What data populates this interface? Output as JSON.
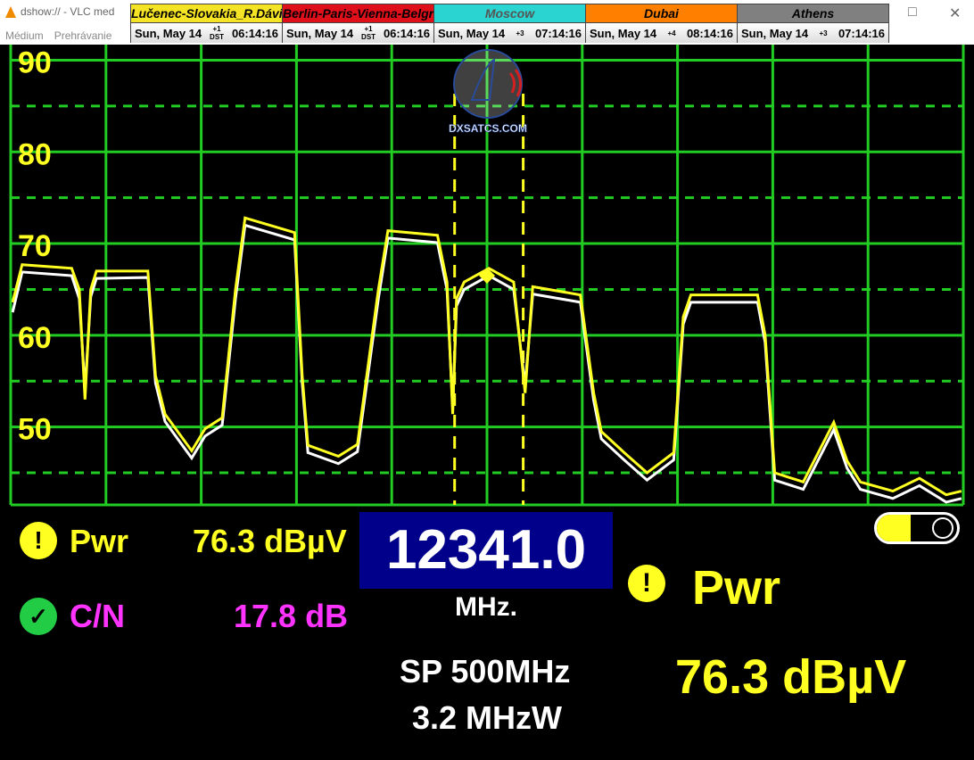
{
  "window": {
    "title": "dshow:// - VLC med",
    "menu": [
      "Médium",
      "Prehrávanie"
    ],
    "maximize_icon": "□",
    "close_icon": "✕"
  },
  "clocks": [
    {
      "city": "Lučenec-Slovakia_R.Dávid",
      "date": "Sun, May 14",
      "offset": "+1",
      "dst": "DST",
      "time": "06:14:16",
      "color": "#f5e325",
      "text_color": "#000"
    },
    {
      "city": "Berlin-Paris-Vienna-Belgrade",
      "date": "Sun, May 14",
      "offset": "+1",
      "dst": "DST",
      "time": "06:14:16",
      "color": "#e0101a",
      "text_color": "#000"
    },
    {
      "city": "Moscow",
      "date": "Sun, May 14",
      "offset": "+3",
      "dst": "",
      "time": "07:14:16",
      "color": "#2ad4d0",
      "text_color": "#555"
    },
    {
      "city": "Dubai",
      "date": "Sun, May 14",
      "offset": "+4",
      "dst": "",
      "time": "08:14:16",
      "color": "#ff7f00",
      "text_color": "#000"
    },
    {
      "city": "Athens",
      "date": "Sun, May 14",
      "offset": "+3",
      "dst": "",
      "time": "07:14:16",
      "color": "#808080",
      "text_color": "#000"
    }
  ],
  "logo": {
    "text": "DXSATCS.COM"
  },
  "chart_data": {
    "type": "line",
    "xlim": [
      12091,
      12591
    ],
    "ylim": [
      41.5,
      91.7
    ],
    "yticks": [
      90,
      80,
      70,
      60,
      50
    ],
    "grid": true,
    "grid_color": "#22cc22",
    "series": [
      {
        "color": "#ffff22",
        "x": [
          12092,
          12097,
          12123,
          12127,
          12130,
          12133,
          12136,
          12163,
          12167,
          12172,
          12186,
          12193,
          12202,
          12209,
          12214,
          12240,
          12244,
          12247,
          12263,
          12273,
          12284,
          12289,
          12315,
          12320,
          12323,
          12325,
          12329,
          12342,
          12355,
          12361,
          12365,
          12390,
          12397,
          12401,
          12413,
          12425,
          12439,
          12444,
          12448,
          12483,
          12487,
          12492,
          12507,
          12523,
          12530,
          12537,
          12554,
          12568,
          12582,
          12590
        ],
        "y": [
          63.6,
          67.7,
          67.3,
          65,
          53,
          65,
          67,
          67,
          55.6,
          51.4,
          47.4,
          49.8,
          51,
          65,
          72.8,
          71.2,
          55.6,
          48,
          46.8,
          48.1,
          65,
          71.4,
          70.9,
          65.8,
          51.4,
          64,
          65.8,
          67.3,
          65.8,
          53.7,
          65.3,
          64.4,
          53.7,
          49.5,
          47.2,
          45,
          47.2,
          62,
          64.4,
          64.4,
          60,
          45,
          44,
          50.5,
          46.3,
          44,
          43,
          44.4,
          42.6,
          43
        ]
      },
      {
        "color": "#ffffff",
        "x": [
          12092,
          12097,
          12123,
          12127,
          12130,
          12133,
          12136,
          12163,
          12167,
          12172,
          12186,
          12193,
          12202,
          12209,
          12214,
          12240,
          12244,
          12247,
          12263,
          12273,
          12284,
          12289,
          12315,
          12320,
          12323,
          12325,
          12329,
          12342,
          12355,
          12361,
          12365,
          12390,
          12397,
          12401,
          12413,
          12425,
          12439,
          12444,
          12448,
          12483,
          12487,
          12492,
          12507,
          12523,
          12530,
          12537,
          12554,
          12568,
          12582,
          12590
        ],
        "y": [
          62.5,
          66.9,
          66.5,
          64,
          54,
          64.2,
          66.2,
          66.3,
          54.8,
          50.6,
          46.6,
          49,
          50.2,
          64,
          72,
          70.4,
          54.8,
          47.2,
          46,
          47.3,
          64,
          70.6,
          70.1,
          65,
          52,
          63.2,
          65,
          66.5,
          65,
          54.5,
          64.5,
          63.6,
          52.9,
          48.7,
          46.4,
          44.2,
          46.4,
          61.2,
          63.6,
          63.6,
          59.2,
          44.2,
          43.2,
          49.7,
          45.5,
          43.2,
          42.2,
          43.6,
          41.8,
          42.2
        ]
      }
    ],
    "markers": {
      "band_lines": [
        12324,
        12360
      ],
      "marker": {
        "x": 12341,
        "y": 66.5
      },
      "color": "#ffff22"
    }
  },
  "readout": {
    "pwr_label": "Pwr",
    "pwr_value": "76.3 dBµV",
    "pwr_status_icon": "warning-icon",
    "cn_label": "C/N",
    "cn_value": "17.8 dB",
    "cn_status_icon": "check-icon",
    "frequency": "12341.0",
    "freq_unit": "MHz.",
    "span": "SP 500MHz",
    "rbw": "3.2 MHzW",
    "big_label": "Pwr",
    "big_value": "76.3 dBµV",
    "battery_level": 0.6,
    "battery_icon": "battery-icon"
  }
}
